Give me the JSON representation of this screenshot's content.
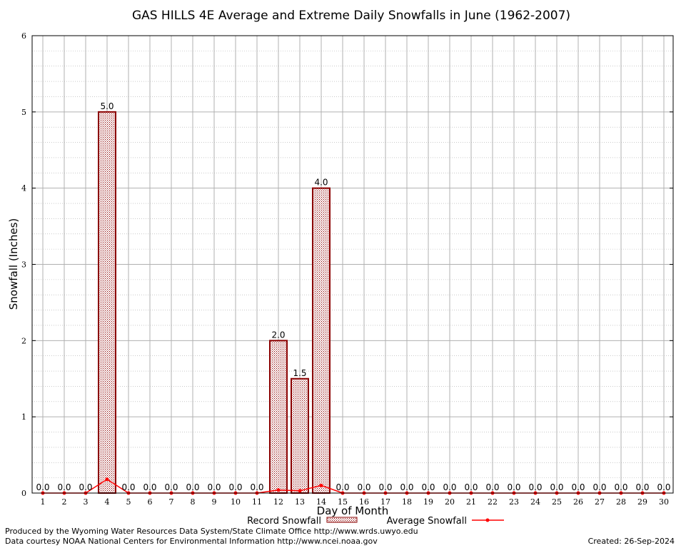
{
  "chart_data": {
    "type": "bar",
    "title": "GAS HILLS 4E Average and Extreme Daily Snowfalls in June (1962-2007)",
    "xlabel": "Day of Month",
    "ylabel": "Snowfall (Inches)",
    "ylim": [
      0,
      6
    ],
    "yticks": [
      "0",
      "1",
      "2",
      "3",
      "4",
      "5",
      "6"
    ],
    "categories": [
      "1",
      "2",
      "3",
      "4",
      "5",
      "6",
      "7",
      "8",
      "9",
      "10",
      "11",
      "12",
      "13",
      "14",
      "15",
      "16",
      "17",
      "18",
      "19",
      "20",
      "21",
      "22",
      "23",
      "24",
      "25",
      "26",
      "27",
      "28",
      "29",
      "30"
    ],
    "series": [
      {
        "name": "Record Snowfall",
        "kind": "bar",
        "color": "#8b0000",
        "values": [
          0,
          0,
          0,
          5.0,
          0,
          0,
          0,
          0,
          0,
          0,
          0,
          2.0,
          1.5,
          4.0,
          0,
          0,
          0,
          0,
          0,
          0,
          0,
          0,
          0,
          0,
          0,
          0,
          0,
          0,
          0,
          0
        ],
        "labels": [
          "0.0",
          "0.0",
          "0.0",
          "5.0",
          "0.0",
          "0.0",
          "0.0",
          "0.0",
          "0.0",
          "0.0",
          "0.0",
          "2.0",
          "1.5",
          "4.0",
          "0.0",
          "0.0",
          "0.0",
          "0.0",
          "0.0",
          "0.0",
          "0.0",
          "0.0",
          "0.0",
          "0.0",
          "0.0",
          "0.0",
          "0.0",
          "0.0",
          "0.0",
          "0.0"
        ]
      },
      {
        "name": "Average Snowfall",
        "kind": "line",
        "color": "#ff0000",
        "values": [
          0,
          0,
          0,
          0.18,
          0,
          0,
          0,
          0,
          0,
          0,
          0,
          0.04,
          0.03,
          0.1,
          0,
          0,
          0,
          0,
          0,
          0,
          0,
          0,
          0,
          0,
          0,
          0,
          0,
          0,
          0,
          0
        ]
      }
    ],
    "grid": true,
    "legend_position": "bottom-center"
  },
  "footer": {
    "line1": "Produced by the Wyoming Water Resources Data System/State Climate Office http://www.wrds.uwyo.edu",
    "line2": "Data courtesy NOAA National Centers for Environmental Information http://www.ncei.noaa.gov",
    "created": "Created:  26-Sep-2024"
  }
}
